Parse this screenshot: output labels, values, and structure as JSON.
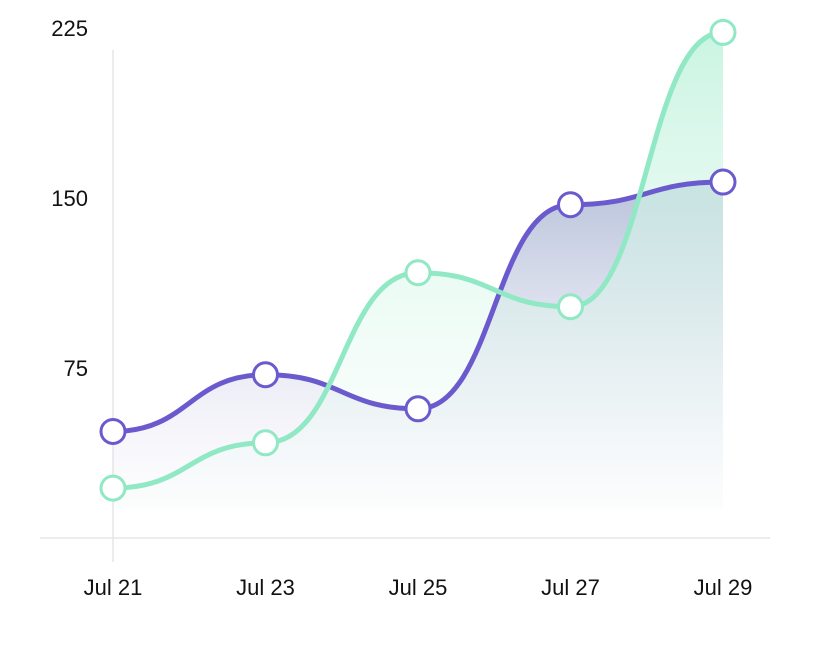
{
  "chart_data": {
    "type": "area",
    "categories": [
      "Jul 21",
      "Jul 23",
      "Jul 25",
      "Jul 27",
      "Jul 29"
    ],
    "x_tick_labels": [
      "Jul 21",
      "Jul 23",
      "Jul 25",
      "Jul 27",
      "Jul 29"
    ],
    "y_tick_labels": [
      "225",
      "150",
      "75"
    ],
    "y_ticks": [
      225,
      150,
      75
    ],
    "ylim": [
      0,
      232
    ],
    "grid": false,
    "smooth": true,
    "series": [
      {
        "values": [
          47,
          72,
          57,
          147,
          157
        ],
        "color": "#6a5acd",
        "marker": "circle"
      },
      {
        "values": [
          22,
          42,
          117,
          102,
          223
        ],
        "color": "#90e8c4",
        "marker": "circle"
      }
    ]
  }
}
